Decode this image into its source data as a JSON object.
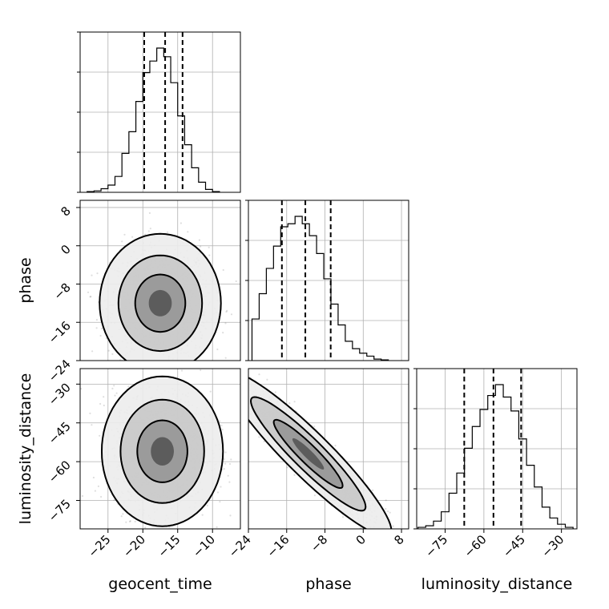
{
  "chart_data": {
    "type": "corner",
    "parameters": [
      "geocent_time",
      "phase",
      "luminosity_distance"
    ],
    "axes": {
      "geocent_time": {
        "label": "geocent_time",
        "range": [
          -29,
          -6
        ],
        "ticks": [
          -25,
          -20,
          -15,
          -10
        ]
      },
      "phase": {
        "label": "phase",
        "range": [
          -24,
          9.5
        ],
        "ticks": [
          -24,
          -16,
          -8,
          0,
          8
        ]
      },
      "luminosity_distance": {
        "label": "luminosity_distance",
        "range": [
          -86,
          -24
        ],
        "ticks": [
          -75,
          -60,
          -45,
          -30
        ]
      }
    },
    "grid": true,
    "quantiles": {
      "geocent_time": [
        -19.8,
        -16.8,
        -14.3
      ],
      "phase": [
        -17.0,
        -12.1,
        -6.8
      ],
      "luminosity_distance": [
        -67.6,
        -56.3,
        -45.6
      ]
    },
    "histograms": {
      "geocent_time": {
        "bins": [
          -27.5,
          -26.5,
          -25.5,
          -24.5,
          -23.5,
          -22.5,
          -21.5,
          -20.5,
          -19.5,
          -18.5,
          -17.5,
          -16.5,
          -15.5,
          -14.5,
          -13.5,
          -12.5,
          -11.5,
          -10.5,
          -9.5
        ],
        "counts": [
          0.5,
          1.0,
          2.5,
          5.0,
          11.0,
          27.0,
          42.0,
          63.0,
          83.0,
          91.0,
          100.0,
          94.0,
          76.0,
          53.0,
          33.0,
          17.0,
          7.0,
          2.0,
          0.5
        ]
      },
      "phase": {
        "bins": [
          -22.5,
          -21.0,
          -19.5,
          -18.0,
          -16.5,
          -15.0,
          -13.5,
          -12.0,
          -10.5,
          -9.0,
          -7.5,
          -6.0,
          -4.5,
          -3.0,
          -1.5,
          0.0,
          1.5,
          3.0,
          4.5
        ],
        "counts": [
          28,
          45,
          62,
          77,
          90,
          92,
          97,
          92,
          84,
          72,
          55,
          38,
          24,
          13,
          8,
          5,
          3,
          1,
          0.5
        ]
      },
      "luminosity_distance": {
        "bins": [
          -84,
          -81,
          -78,
          -75,
          -72,
          -69,
          -66,
          -63,
          -60,
          -57,
          -54,
          -51,
          -48,
          -45,
          -42,
          -39,
          -36,
          -33,
          -30,
          -27
        ],
        "counts": [
          1,
          2,
          5,
          11,
          23,
          36,
          52,
          66,
          77,
          86,
          93,
          85,
          76,
          58,
          41,
          27,
          14,
          7,
          3,
          1
        ]
      }
    },
    "panels": [
      {
        "x": "geocent_time",
        "y": "phase",
        "center": [
          -17.5,
          -12.0
        ],
        "spread": [
          3.0,
          5.0
        ],
        "rho": 0.0,
        "levels": [
          1.2,
          2.0,
          2.9
        ]
      },
      {
        "x": "geocent_time",
        "y": "luminosity_distance",
        "center": [
          -17.2,
          -56.0
        ],
        "spread": [
          3.0,
          10.0
        ],
        "rho": 0.0,
        "levels": [
          1.2,
          2.0,
          2.9
        ]
      },
      {
        "x": "phase",
        "y": "luminosity_distance",
        "center": [
          -11.5,
          -57.0
        ],
        "spread": [
          6.0,
          11.0
        ],
        "rho": -0.93,
        "levels": [
          1.2,
          2.0,
          2.9
        ]
      }
    ]
  }
}
